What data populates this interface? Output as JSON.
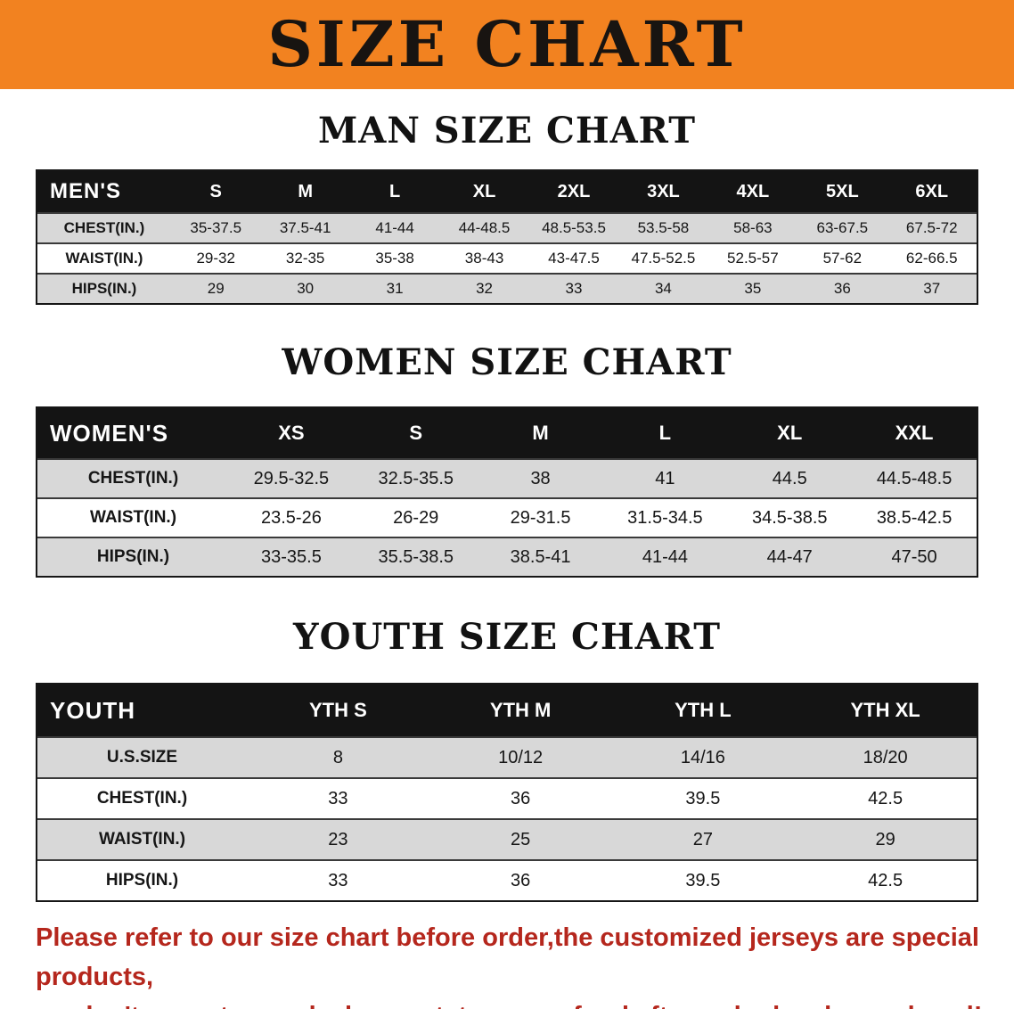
{
  "banner": {
    "title": "SIZE CHART"
  },
  "sections": [
    {
      "heading": "MAN SIZE CHART",
      "table": {
        "header": [
          "MEN'S",
          "S",
          "M",
          "L",
          "XL",
          "2XL",
          "3XL",
          "4XL",
          "5XL",
          "6XL"
        ],
        "rows": [
          {
            "label": "CHEST(IN.)",
            "values": [
              "35-37.5",
              "37.5-41",
              "41-44",
              "44-48.5",
              "48.5-53.5",
              "53.5-58",
              "58-63",
              "63-67.5",
              "67.5-72"
            ]
          },
          {
            "label": "WAIST(IN.)",
            "values": [
              "29-32",
              "32-35",
              "35-38",
              "38-43",
              "43-47.5",
              "47.5-52.5",
              "52.5-57",
              "57-62",
              "62-66.5"
            ]
          },
          {
            "label": "HIPS(IN.)",
            "values": [
              "29",
              "30",
              "31",
              "32",
              "33",
              "34",
              "35",
              "36",
              "37"
            ]
          }
        ]
      }
    },
    {
      "heading": "WOMEN SIZE CHART",
      "table": {
        "header": [
          "WOMEN'S",
          "XS",
          "S",
          "M",
          "L",
          "XL",
          "XXL"
        ],
        "rows": [
          {
            "label": "CHEST(IN.)",
            "values": [
              "29.5-32.5",
              "32.5-35.5",
              "38",
              "41",
              "44.5",
              "44.5-48.5"
            ]
          },
          {
            "label": "WAIST(IN.)",
            "values": [
              "23.5-26",
              "26-29",
              "29-31.5",
              "31.5-34.5",
              "34.5-38.5",
              "38.5-42.5"
            ]
          },
          {
            "label": "HIPS(IN.)",
            "values": [
              "33-35.5",
              "35.5-38.5",
              "38.5-41",
              "41-44",
              "44-47",
              "47-50"
            ]
          }
        ]
      }
    },
    {
      "heading": "YOUTH SIZE CHART",
      "table": {
        "header": [
          "YOUTH",
          "YTH S",
          "YTH M",
          "YTH L",
          "YTH XL"
        ],
        "rows": [
          {
            "label": "U.S.SIZE",
            "values": [
              "8",
              "10/12",
              "14/16",
              "18/20"
            ]
          },
          {
            "label": "CHEST(IN.)",
            "values": [
              "33",
              "36",
              "39.5",
              "42.5"
            ]
          },
          {
            "label": "WAIST(IN.)",
            "values": [
              "23",
              "25",
              "27",
              "29"
            ]
          },
          {
            "label": "HIPS(IN.)",
            "values": [
              "33",
              "36",
              "39.5",
              "42.5"
            ]
          }
        ]
      }
    }
  ],
  "footer": {
    "line1": "Please refer to our size chart before order,the customized jerseys are special products,",
    "line2": "we don't accept cancel, change, teturn or refund after order has been placed!"
  },
  "colors": {
    "banner_orange": "#F28220",
    "header_black": "#141414",
    "row_gray": "#D8D8D8",
    "footer_red": "#B5271D"
  }
}
